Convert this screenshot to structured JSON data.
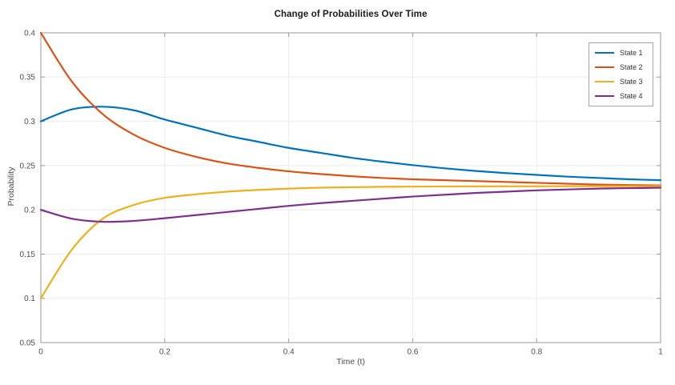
{
  "chart_data": {
    "type": "line",
    "title": "Change of Probabilities Over Time",
    "xlabel": "Time (t)",
    "ylabel": "Probability",
    "xlim": [
      0,
      1
    ],
    "ylim": [
      0.05,
      0.4
    ],
    "x_ticks": [
      0,
      0.2,
      0.4,
      0.6,
      0.8,
      1
    ],
    "x_tick_labels": [
      "0",
      "0.2",
      "0.4",
      "0.6",
      "0.8",
      "1"
    ],
    "y_ticks": [
      0.05,
      0.1,
      0.15,
      0.2,
      0.25,
      0.3,
      0.35,
      0.4
    ],
    "y_tick_labels": [
      "0.05",
      "0.1",
      "0.15",
      "0.2",
      "0.25",
      "0.3",
      "0.35",
      "0.4"
    ],
    "grid": true,
    "legend_position": "top-right",
    "x": [
      0,
      0.05,
      0.1,
      0.15,
      0.2,
      0.25,
      0.3,
      0.35,
      0.4,
      0.45,
      0.5,
      0.55,
      0.6,
      0.65,
      0.7,
      0.75,
      0.8,
      0.85,
      0.9,
      0.95,
      1
    ],
    "series": [
      {
        "name": "State 1",
        "color": "#0072BD",
        "values": [
          0.3,
          0.3135,
          0.3165,
          0.3125,
          0.302,
          0.293,
          0.284,
          0.277,
          0.27,
          0.2645,
          0.259,
          0.2545,
          0.2505,
          0.247,
          0.244,
          0.2415,
          0.2395,
          0.2375,
          0.236,
          0.2345,
          0.2335
        ]
      },
      {
        "name": "State 2",
        "color": "#D95319",
        "values": [
          0.4,
          0.345,
          0.308,
          0.285,
          0.27,
          0.26,
          0.2525,
          0.2475,
          0.2435,
          0.2405,
          0.238,
          0.236,
          0.2345,
          0.2335,
          0.2325,
          0.2315,
          0.2305,
          0.2295,
          0.2285,
          0.228,
          0.2275
        ]
      },
      {
        "name": "State 3",
        "color": "#EDB120",
        "values": [
          0.1,
          0.155,
          0.19,
          0.2055,
          0.2135,
          0.2175,
          0.2205,
          0.2225,
          0.224,
          0.225,
          0.2255,
          0.226,
          0.2262,
          0.2264,
          0.2265,
          0.2266,
          0.2266,
          0.2267,
          0.2267,
          0.2267,
          0.2267
        ]
      },
      {
        "name": "State 4",
        "color": "#7E2F8E",
        "values": [
          0.2,
          0.19,
          0.1865,
          0.1875,
          0.1905,
          0.194,
          0.1975,
          0.201,
          0.2045,
          0.2075,
          0.21,
          0.2125,
          0.215,
          0.217,
          0.219,
          0.2205,
          0.222,
          0.223,
          0.224,
          0.2245,
          0.225
        ]
      }
    ],
    "style": {
      "axis_color": "#999999",
      "grid_color": "#ebebeb",
      "tick_label_color": "#4d4d4d",
      "line_width": 2.2,
      "tick_length": 5
    }
  }
}
